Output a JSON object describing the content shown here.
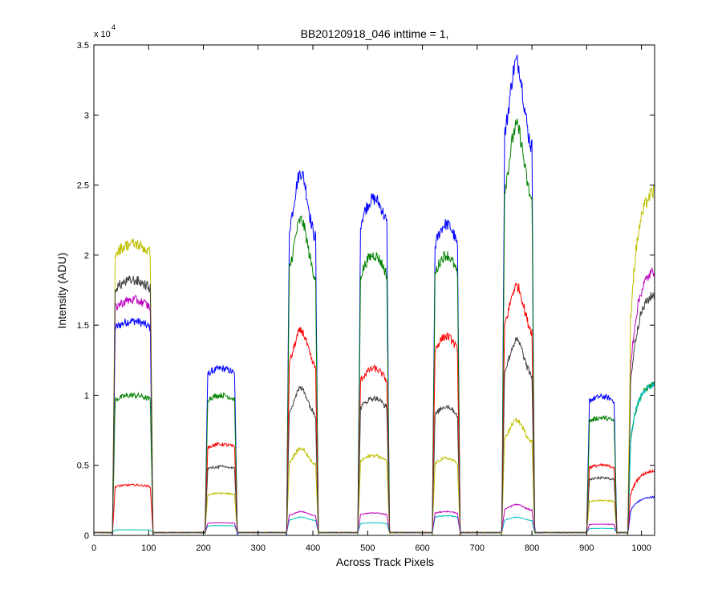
{
  "chart_data": {
    "type": "line",
    "title": "BB20120918_046 inttime = 1,",
    "xlabel": "Across Track Pixels",
    "ylabel": "Intensity (ADU)",
    "y_multiplier_base": "x 10",
    "y_multiplier_exponent": "4",
    "xlim": [
      0,
      1024
    ],
    "ylim": [
      0,
      35000
    ],
    "grid": false,
    "x_ticks": [
      0,
      100,
      200,
      300,
      400,
      500,
      600,
      700,
      800,
      900,
      1000
    ],
    "x_tick_labels": [
      "0",
      "100",
      "200",
      "300",
      "400",
      "500",
      "600",
      "700",
      "800",
      "900",
      "1000"
    ],
    "y_ticks": [
      0,
      5000,
      10000,
      15000,
      20000,
      25000,
      30000,
      35000
    ],
    "y_tick_labels": [
      "0",
      "0.5",
      "1",
      "1.5",
      "2",
      "2.5",
      "3",
      "3.5"
    ],
    "baseline": 200,
    "bands": [
      {
        "start": 34,
        "end": 108,
        "profile": "flat"
      },
      {
        "start": 203,
        "end": 262,
        "profile": "flat"
      },
      {
        "start": 352,
        "end": 410,
        "profile": "peak"
      },
      {
        "start": 482,
        "end": 540,
        "profile": "round"
      },
      {
        "start": 618,
        "end": 669,
        "profile": "round"
      },
      {
        "start": 745,
        "end": 805,
        "profile": "peak"
      },
      {
        "start": 900,
        "end": 955,
        "profile": "flat"
      },
      {
        "start": 975,
        "end": 1024,
        "profile": "rising"
      }
    ],
    "series": [
      {
        "color": "#0000ff",
        "levels": [
          15300,
          11900,
          25900,
          24000,
          22200,
          33800,
          9900,
          2800
        ]
      },
      {
        "color": "#008000",
        "levels": [
          10000,
          10000,
          22500,
          20000,
          20000,
          29200,
          8400,
          11000
        ]
      },
      {
        "color": "#ff0000",
        "levels": [
          3600,
          6500,
          14600,
          11900,
          14200,
          17800,
          5000,
          4700
        ]
      },
      {
        "color": "#00bfbf",
        "levels": [
          400,
          700,
          1300,
          900,
          1400,
          1300,
          500,
          11000
        ]
      },
      {
        "color": "#bf00bf",
        "levels": [
          16800,
          900,
          1700,
          1600,
          1700,
          2200,
          800,
          19200
        ]
      },
      {
        "color": "#bfbf00",
        "levels": [
          20800,
          3000,
          6200,
          5700,
          5500,
          8200,
          2500,
          25000
        ]
      },
      {
        "color": "#404040",
        "levels": [
          18200,
          4900,
          10500,
          9800,
          9200,
          13900,
          4100,
          17500
        ]
      }
    ]
  }
}
